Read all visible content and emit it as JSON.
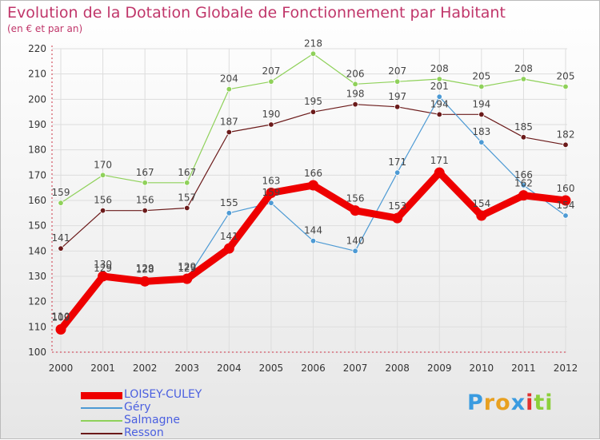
{
  "title": "Evolution de la Dotation Globale de Fonctionnement par Habitant",
  "subtitle": "(en € et par an)",
  "logo": {
    "letters": [
      "P",
      "r",
      "o",
      "x",
      "i",
      "t",
      "i"
    ],
    "colors": [
      "#3a9be0",
      "#e8a020",
      "#e8a020",
      "#3a9be0",
      "#e03030",
      "#8ccf3a",
      "#8ccf3a"
    ]
  },
  "chart_data": {
    "type": "line",
    "x": [
      "2000",
      "2001",
      "2002",
      "2003",
      "2004",
      "2005",
      "2006",
      "2007",
      "2008",
      "2009",
      "2010",
      "2011",
      "2012"
    ],
    "ylim": [
      100,
      220
    ],
    "yticks": [
      "100",
      "110",
      "120",
      "130",
      "140",
      "150",
      "160",
      "170",
      "180",
      "190",
      "200",
      "210",
      "220"
    ],
    "grid": true,
    "legend_position": "bottom-left",
    "series": [
      {
        "name": "LOISEY-CULEY",
        "color": "#ee0000",
        "values": [
          109,
          130,
          128,
          129,
          141,
          163,
          166,
          156,
          153,
          171,
          154,
          162,
          160
        ],
        "labels": [
          "109",
          "130",
          "128",
          "129",
          "141",
          "163",
          "166",
          "156",
          "153",
          "171",
          "154",
          "162",
          "160"
        ]
      },
      {
        "name": "Géry",
        "color": "#4d9ad4",
        "values": [
          110,
          129,
          129,
          129,
          155,
          159,
          144,
          140,
          171,
          201,
          183,
          166,
          154
        ],
        "labels": [
          "110",
          "129",
          "129",
          "129",
          "155",
          "159",
          "144",
          "140",
          "171",
          "201",
          "183",
          "166",
          "154"
        ]
      },
      {
        "name": "Salmagne",
        "color": "#8fd15a",
        "values": [
          159,
          170,
          167,
          167,
          204,
          207,
          218,
          206,
          207,
          208,
          205,
          208,
          205
        ],
        "labels": [
          "159",
          "170",
          "167",
          "167",
          "204",
          "207",
          "218",
          "206",
          "207",
          "208",
          "205",
          "208",
          "205"
        ]
      },
      {
        "name": "Resson",
        "color": "#6b1a1a",
        "values": [
          141,
          156,
          156,
          157,
          187,
          190,
          195,
          198,
          197,
          194,
          194,
          185,
          182
        ],
        "labels": [
          "141",
          "156",
          "156",
          "157",
          "187",
          "190",
          "195",
          "198",
          "197",
          "194",
          "194",
          "185",
          "182"
        ]
      }
    ]
  }
}
